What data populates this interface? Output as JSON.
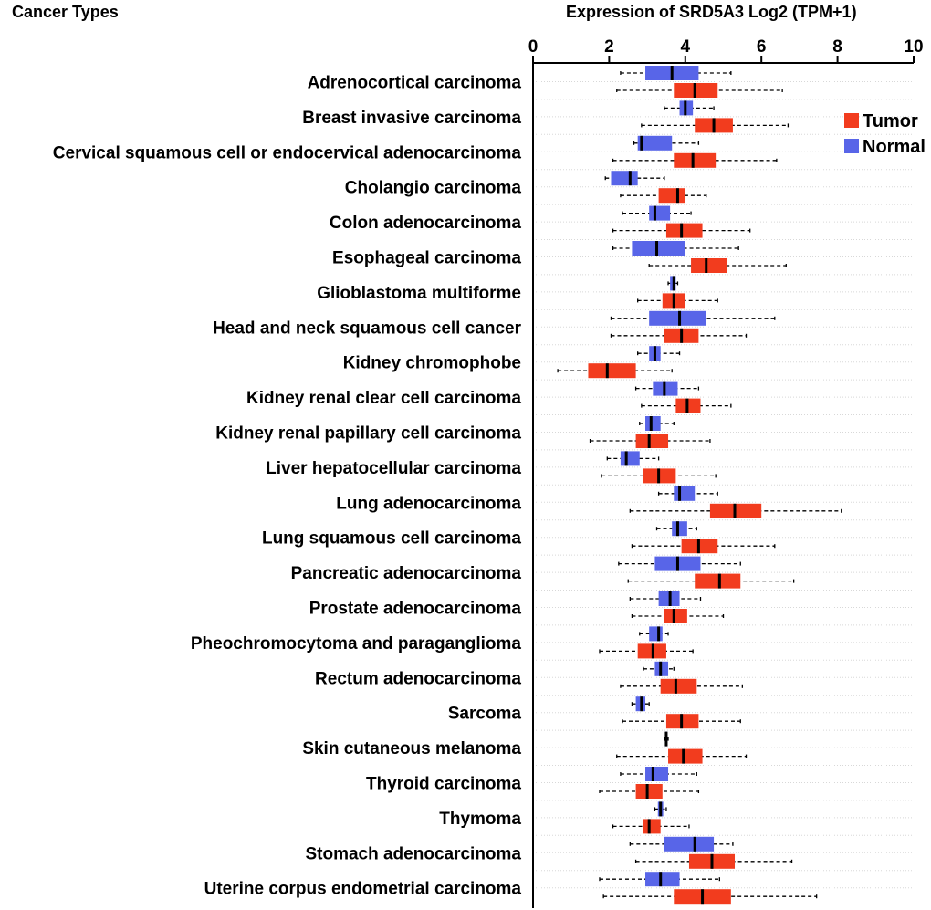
{
  "header": {
    "category_title": "Cancer Types",
    "axis_title": "Expression of SRD5A3 Log2 (TPM+1)"
  },
  "colors": {
    "tumor": "#f23c1e",
    "normal": "#5865e8",
    "highlight": "#e8141a",
    "text": "#000000",
    "gridline": "#d8d8d8"
  },
  "chart_data": {
    "type": "boxplot",
    "title": "Expression of SRD5A3 Log2 (TPM+1)",
    "xlabel": "Expression of SRD5A3 Log2 (TPM+1)",
    "ylabel": "Cancer Types",
    "xlim": [
      0,
      10
    ],
    "xticks": [
      0,
      2,
      4,
      6,
      8,
      10
    ],
    "legend": {
      "position": "top-right",
      "entries": [
        {
          "name": "Tumor",
          "color": "#f23c1e"
        },
        {
          "name": "Normal",
          "color": "#5865e8"
        }
      ]
    },
    "highlighted_category": "Liver hepatocellular carcinoma",
    "categories": [
      {
        "name": "Adrenocortical carcinoma",
        "normal": {
          "min": 2.3,
          "q1": 2.95,
          "median": 3.65,
          "q3": 4.35,
          "max": 5.2
        },
        "tumor": {
          "min": 2.2,
          "q1": 3.7,
          "median": 4.25,
          "q3": 4.85,
          "max": 6.55
        }
      },
      {
        "name": "Breast invasive carcinoma",
        "normal": {
          "min": 3.45,
          "q1": 3.85,
          "median": 4.0,
          "q3": 4.2,
          "max": 4.75
        },
        "tumor": {
          "min": 2.85,
          "q1": 4.25,
          "median": 4.75,
          "q3": 5.25,
          "max": 6.7
        }
      },
      {
        "name": "Cervical squamous cell or endocervical adenocarcinoma",
        "normal": {
          "min": 2.65,
          "q1": 2.75,
          "median": 2.85,
          "q3": 3.65,
          "max": 4.35
        },
        "tumor": {
          "min": 2.1,
          "q1": 3.7,
          "median": 4.2,
          "q3": 4.8,
          "max": 6.4
        }
      },
      {
        "name": "Cholangio carcinoma",
        "normal": {
          "min": 1.9,
          "q1": 2.05,
          "median": 2.55,
          "q3": 2.75,
          "max": 3.45
        },
        "tumor": {
          "min": 2.3,
          "q1": 3.3,
          "median": 3.8,
          "q3": 4.0,
          "max": 4.55
        }
      },
      {
        "name": "Colon adenocarcinoma",
        "normal": {
          "min": 2.35,
          "q1": 3.05,
          "median": 3.2,
          "q3": 3.6,
          "max": 4.15
        },
        "tumor": {
          "min": 2.1,
          "q1": 3.5,
          "median": 3.9,
          "q3": 4.45,
          "max": 5.7
        }
      },
      {
        "name": "Esophageal carcinoma",
        "normal": {
          "min": 2.1,
          "q1": 2.6,
          "median": 3.25,
          "q3": 4.0,
          "max": 5.4
        },
        "tumor": {
          "min": 3.05,
          "q1": 4.15,
          "median": 4.55,
          "q3": 5.1,
          "max": 6.65
        }
      },
      {
        "name": "Glioblastoma multiforme",
        "normal": {
          "min": 3.55,
          "q1": 3.6,
          "median": 3.7,
          "q3": 3.75,
          "max": 3.8
        },
        "tumor": {
          "min": 2.75,
          "q1": 3.4,
          "median": 3.7,
          "q3": 4.0,
          "max": 4.85
        }
      },
      {
        "name": "Head and neck squamous cell cancer",
        "normal": {
          "min": 2.05,
          "q1": 3.05,
          "median": 3.85,
          "q3": 4.55,
          "max": 6.35
        },
        "tumor": {
          "min": 2.05,
          "q1": 3.45,
          "median": 3.9,
          "q3": 4.35,
          "max": 5.6
        }
      },
      {
        "name": "Kidney chromophobe",
        "normal": {
          "min": 2.75,
          "q1": 3.05,
          "median": 3.2,
          "q3": 3.35,
          "max": 3.85
        },
        "tumor": {
          "min": 0.65,
          "q1": 1.45,
          "median": 1.95,
          "q3": 2.7,
          "max": 3.65
        }
      },
      {
        "name": "Kidney renal clear cell carcinoma",
        "normal": {
          "min": 2.7,
          "q1": 3.15,
          "median": 3.45,
          "q3": 3.8,
          "max": 4.35
        },
        "tumor": {
          "min": 2.85,
          "q1": 3.75,
          "median": 4.05,
          "q3": 4.4,
          "max": 5.2
        }
      },
      {
        "name": "Kidney renal papillary cell carcinoma",
        "normal": {
          "min": 2.8,
          "q1": 2.95,
          "median": 3.1,
          "q3": 3.35,
          "max": 3.7
        },
        "tumor": {
          "min": 1.5,
          "q1": 2.7,
          "median": 3.05,
          "q3": 3.55,
          "max": 4.65
        }
      },
      {
        "name": "Liver hepatocellular carcinoma",
        "normal": {
          "min": 1.95,
          "q1": 2.3,
          "median": 2.45,
          "q3": 2.8,
          "max": 3.3
        },
        "tumor": {
          "min": 1.8,
          "q1": 2.9,
          "median": 3.3,
          "q3": 3.75,
          "max": 4.8
        }
      },
      {
        "name": "Lung adenocarcinoma",
        "normal": {
          "min": 3.3,
          "q1": 3.7,
          "median": 3.85,
          "q3": 4.25,
          "max": 4.85
        },
        "tumor": {
          "min": 2.55,
          "q1": 4.65,
          "median": 5.3,
          "q3": 6.0,
          "max": 8.1
        }
      },
      {
        "name": "Lung squamous cell carcinoma",
        "normal": {
          "min": 3.25,
          "q1": 3.65,
          "median": 3.8,
          "q3": 4.05,
          "max": 4.3
        },
        "tumor": {
          "min": 2.6,
          "q1": 3.9,
          "median": 4.35,
          "q3": 4.85,
          "max": 6.35
        }
      },
      {
        "name": "Pancreatic adenocarcinoma",
        "normal": {
          "min": 2.25,
          "q1": 3.2,
          "median": 3.8,
          "q3": 4.4,
          "max": 5.45
        },
        "tumor": {
          "min": 2.5,
          "q1": 4.25,
          "median": 4.9,
          "q3": 5.45,
          "max": 6.85
        }
      },
      {
        "name": "Prostate adenocarcinoma",
        "normal": {
          "min": 2.55,
          "q1": 3.3,
          "median": 3.6,
          "q3": 3.85,
          "max": 4.4
        },
        "tumor": {
          "min": 2.6,
          "q1": 3.45,
          "median": 3.7,
          "q3": 4.05,
          "max": 5.0
        }
      },
      {
        "name": "Pheochromocytoma and paraganglioma",
        "normal": {
          "min": 2.8,
          "q1": 3.05,
          "median": 3.3,
          "q3": 3.4,
          "max": 3.55
        },
        "tumor": {
          "min": 1.75,
          "q1": 2.75,
          "median": 3.15,
          "q3": 3.5,
          "max": 4.2
        }
      },
      {
        "name": "Rectum adenocarcinoma",
        "normal": {
          "min": 2.9,
          "q1": 3.2,
          "median": 3.35,
          "q3": 3.55,
          "max": 3.7
        },
        "tumor": {
          "min": 2.3,
          "q1": 3.35,
          "median": 3.75,
          "q3": 4.3,
          "max": 5.5
        }
      },
      {
        "name": "Sarcoma",
        "normal": {
          "min": 2.6,
          "q1": 2.7,
          "median": 2.85,
          "q3": 2.95,
          "max": 3.05
        },
        "tumor": {
          "min": 2.35,
          "q1": 3.5,
          "median": 3.9,
          "q3": 4.35,
          "max": 5.45
        }
      },
      {
        "name": "Skin cutaneous melanoma",
        "normal": {
          "min": 3.45,
          "q1": 3.48,
          "median": 3.5,
          "q3": 3.52,
          "max": 3.55
        },
        "tumor": {
          "min": 2.2,
          "q1": 3.55,
          "median": 3.95,
          "q3": 4.45,
          "max": 5.6
        }
      },
      {
        "name": "Thyroid carcinoma",
        "normal": {
          "min": 2.3,
          "q1": 2.95,
          "median": 3.15,
          "q3": 3.55,
          "max": 4.3
        },
        "tumor": {
          "min": 1.75,
          "q1": 2.7,
          "median": 3.0,
          "q3": 3.4,
          "max": 4.35
        }
      },
      {
        "name": "Thymoma",
        "normal": {
          "min": 3.2,
          "q1": 3.28,
          "median": 3.35,
          "q3": 3.42,
          "max": 3.5
        },
        "tumor": {
          "min": 2.1,
          "q1": 2.9,
          "median": 3.05,
          "q3": 3.35,
          "max": 4.1
        }
      },
      {
        "name": "Stomach adenocarcinoma",
        "normal": {
          "min": 2.55,
          "q1": 3.45,
          "median": 4.25,
          "q3": 4.75,
          "max": 5.25
        },
        "tumor": {
          "min": 2.7,
          "q1": 4.1,
          "median": 4.7,
          "q3": 5.3,
          "max": 6.8
        }
      },
      {
        "name": "Uterine corpus endometrial carcinoma",
        "normal": {
          "min": 1.75,
          "q1": 2.95,
          "median": 3.35,
          "q3": 3.85,
          "max": 4.9
        },
        "tumor": {
          "min": 1.85,
          "q1": 3.7,
          "median": 4.45,
          "q3": 5.2,
          "max": 7.45
        }
      }
    ]
  }
}
